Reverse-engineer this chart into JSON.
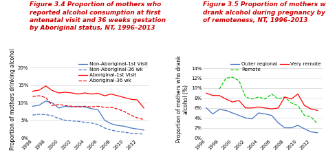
{
  "years": [
    1996,
    1997,
    1998,
    1999,
    2000,
    2001,
    2002,
    2003,
    2004,
    2005,
    2006,
    2007,
    2008,
    2009,
    2010,
    2011,
    2012,
    2013
  ],
  "fig34": {
    "title_lines": [
      "Figure 3.4 Proportion of mothers who",
      "reported alcohol consumption at first",
      "antenatal visit and 36 weeks gestation",
      "by Aboriginal status, NT, 1996–2013"
    ],
    "ylabel": "Proportion of mothers drinking alcohol",
    "ylim": [
      0,
      0.22
    ],
    "yticks": [
      0.0,
      0.05,
      0.1,
      0.15,
      0.2
    ],
    "yticklabels": [
      "0%",
      "5%",
      "10%",
      "15%",
      "20%"
    ],
    "non_ab_1st": [
      0.09,
      0.093,
      0.105,
      0.1,
      0.085,
      0.09,
      0.088,
      0.09,
      0.088,
      0.083,
      0.08,
      0.05,
      0.04,
      0.035,
      0.033,
      0.028,
      0.025,
      0.022
    ],
    "non_ab_36": [
      0.065,
      0.067,
      0.066,
      0.063,
      0.055,
      0.05,
      0.048,
      0.047,
      0.044,
      0.042,
      0.038,
      0.028,
      0.022,
      0.018,
      0.016,
      0.013,
      0.012,
      0.01
    ],
    "ab_1st": [
      0.133,
      0.136,
      0.148,
      0.135,
      0.128,
      0.13,
      0.128,
      0.125,
      0.128,
      0.125,
      0.127,
      0.12,
      0.125,
      0.12,
      0.115,
      0.11,
      0.108,
      0.085
    ],
    "ab_36": [
      0.118,
      0.12,
      0.115,
      0.092,
      0.095,
      0.092,
      0.09,
      0.088,
      0.09,
      0.088,
      0.09,
      0.087,
      0.087,
      0.082,
      0.075,
      0.065,
      0.057,
      0.052
    ],
    "color_blue": "#4472C4",
    "color_red": "#FF0000",
    "legend_labels": [
      "Non-Aboriginal-1st Visit",
      "Non-Aboriginal-36 wk",
      "Aboriginal-1st Visit",
      "Aboriginal-36 wk"
    ]
  },
  "fig35": {
    "title_lines": [
      "Figure 3.5 Proportion of mothers who",
      "drank alcohol during pregnancy by level",
      "of remoteness, NT, 1996–2013"
    ],
    "ylabel": "Proportion of mothers who drank\nalcohol (%)",
    "ylim": [
      0,
      0.155
    ],
    "yticks": [
      0.0,
      0.02,
      0.04,
      0.06,
      0.08,
      0.1,
      0.12,
      0.14
    ],
    "yticklabels": [
      "0%",
      "2%",
      "4%",
      "6%",
      "8%",
      "10%",
      "12%",
      "14%"
    ],
    "outer_regional": [
      0.06,
      0.048,
      0.057,
      0.055,
      0.05,
      0.045,
      0.04,
      0.038,
      0.05,
      0.048,
      0.045,
      0.03,
      0.02,
      0.02,
      0.025,
      0.018,
      0.012,
      0.01
    ],
    "remote": [
      null,
      null,
      0.098,
      0.12,
      0.122,
      0.115,
      0.082,
      0.078,
      0.082,
      0.078,
      0.088,
      0.078,
      0.082,
      0.07,
      0.065,
      0.045,
      0.042,
      0.028
    ],
    "very_remote": [
      0.09,
      0.085,
      0.085,
      0.078,
      0.072,
      0.075,
      0.06,
      0.06,
      0.062,
      0.06,
      0.058,
      0.06,
      0.082,
      0.078,
      0.088,
      0.065,
      0.058,
      0.055
    ],
    "color_blue": "#4472C4",
    "color_green": "#00CC00",
    "color_red": "#FF0000",
    "legend_labels": [
      "Outer regional",
      "Remote",
      "Very remote"
    ]
  },
  "title_color": "#CC0000",
  "background_color": "#FFFFFF",
  "title_fontsize": 6.5,
  "axis_fontsize": 5.5,
  "tick_fontsize": 5.0,
  "legend_fontsize": 5.2
}
